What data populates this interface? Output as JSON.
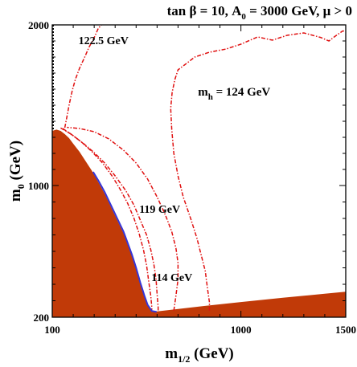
{
  "chart_data": {
    "type": "line",
    "title": "tan β = 10, A0 = 3000 GeV, μ > 0",
    "title_parts": {
      "a": "tan β = 10, A",
      "a_sub": "0",
      "b": " = 3000 GeV,  μ > 0"
    },
    "xlabel": "m1/2 (GeV)",
    "xlabel_parts": {
      "main": "m",
      "sub": "1/2",
      "rest": " (GeV)"
    },
    "ylabel": "m0 (GeV)",
    "ylabel_parts": {
      "main": "m",
      "sub": "0",
      "rest": " (GeV)"
    },
    "xlim": [
      100,
      1500
    ],
    "ylim": [
      200,
      2000
    ],
    "x_ticks": [
      {
        "value": 100,
        "label": "100"
      },
      {
        "value": 1000,
        "label": "1000"
      },
      {
        "value": 1500,
        "label": "1500"
      }
    ],
    "y_ticks": [
      {
        "value": 200,
        "label": "200"
      },
      {
        "value": 1000,
        "label": "1000"
      },
      {
        "value": 2000,
        "label": "2000"
      }
    ],
    "x_minor_ticks": [
      200,
      300,
      400,
      500,
      600,
      700,
      800,
      900,
      1100,
      1200,
      1300,
      1400
    ],
    "y_minor_ticks": [
      300,
      400,
      500,
      600,
      700,
      800,
      900,
      1100,
      1200,
      1300,
      1400,
      1500,
      1600,
      1700,
      1800,
      1900
    ],
    "colors": {
      "excluded_region": "#c13a08",
      "higgs_contours": "#e01010",
      "relic_density": "#3535d8",
      "chargino_limit": "#000000"
    },
    "excluded_region": {
      "name": "excluded region",
      "points": [
        [
          100,
          200
        ],
        [
          100,
          1340
        ],
        [
          120,
          1348
        ],
        [
          140,
          1340
        ],
        [
          160,
          1320
        ],
        [
          180,
          1295
        ],
        [
          200,
          1260
        ],
        [
          230,
          1210
        ],
        [
          260,
          1150
        ],
        [
          290,
          1090
        ],
        [
          320,
          1020
        ],
        [
          350,
          950
        ],
        [
          380,
          870
        ],
        [
          410,
          790
        ],
        [
          440,
          710
        ],
        [
          460,
          640
        ],
        [
          480,
          570
        ],
        [
          500,
          490
        ],
        [
          520,
          400
        ],
        [
          540,
          320
        ],
        [
          560,
          260
        ],
        [
          580,
          232
        ],
        [
          800,
          265
        ],
        [
          1000,
          292
        ],
        [
          1200,
          318
        ],
        [
          1400,
          343
        ],
        [
          1500,
          355
        ],
        [
          1500,
          200
        ]
      ]
    },
    "series": [
      {
        "name": "mh = 124 GeV",
        "label_parts": {
          "main": "m",
          "sub": "h",
          "rest": "  = 124 GeV"
        },
        "label_at": [
          795,
          1560
        ],
        "style": "dashdot",
        "points": [
          [
            850,
            240
          ],
          [
            850,
            290
          ],
          [
            840,
            380
          ],
          [
            830,
            480
          ],
          [
            810,
            580
          ],
          [
            790,
            680
          ],
          [
            760,
            800
          ],
          [
            725,
            930
          ],
          [
            700,
            1060
          ],
          [
            680,
            1200
          ],
          [
            670,
            1350
          ],
          [
            665,
            1480
          ],
          [
            672,
            1580
          ],
          [
            685,
            1660
          ],
          [
            700,
            1720
          ],
          [
            730,
            1750
          ],
          [
            780,
            1800
          ],
          [
            850,
            1830
          ],
          [
            930,
            1850
          ],
          [
            1000,
            1880
          ],
          [
            1080,
            1925
          ],
          [
            1150,
            1905
          ],
          [
            1220,
            1935
          ],
          [
            1300,
            1950
          ],
          [
            1380,
            1922
          ],
          [
            1420,
            1900
          ],
          [
            1450,
            1930
          ],
          [
            1485,
            1962
          ],
          [
            1500,
            1962
          ]
        ]
      },
      {
        "name": "122.5 GeV",
        "label_at": [
          225,
          1880
        ],
        "style": "dashdot",
        "points": [
          [
            160,
            1360
          ],
          [
            170,
            1430
          ],
          [
            180,
            1500
          ],
          [
            195,
            1590
          ],
          [
            210,
            1660
          ],
          [
            230,
            1730
          ],
          [
            255,
            1800
          ],
          [
            275,
            1860
          ],
          [
            300,
            1920
          ],
          [
            320,
            1980
          ],
          [
            335,
            2000
          ]
        ]
      },
      {
        "name": "119 GeV",
        "label_at": [
          515,
          835
        ],
        "style": "dashdot",
        "points": [
          [
            150,
            1355
          ],
          [
            200,
            1310
          ],
          [
            250,
            1260
          ],
          [
            300,
            1205
          ],
          [
            350,
            1140
          ],
          [
            400,
            1060
          ],
          [
            450,
            970
          ],
          [
            490,
            880
          ],
          [
            520,
            790
          ],
          [
            550,
            700
          ],
          [
            570,
            610
          ],
          [
            585,
            520
          ],
          [
            595,
            430
          ],
          [
            600,
            340
          ],
          [
            605,
            260
          ],
          [
            605,
            240
          ]
        ]
      },
      {
        "name": "114 GeV",
        "label_at": [
          573,
          420
        ],
        "style": "dashdot",
        "points": [
          [
            140,
            1358
          ],
          [
            190,
            1320
          ],
          [
            240,
            1270
          ],
          [
            290,
            1210
          ],
          [
            340,
            1140
          ],
          [
            385,
            1060
          ],
          [
            425,
            975
          ],
          [
            460,
            890
          ],
          [
            490,
            800
          ],
          [
            515,
            705
          ],
          [
            535,
            610
          ],
          [
            550,
            515
          ],
          [
            560,
            420
          ],
          [
            570,
            330
          ],
          [
            575,
            260
          ],
          [
            575,
            245
          ]
        ]
      },
      {
        "name": "",
        "style": "dashdot",
        "points": [
          [
            680,
            240
          ],
          [
            690,
            330
          ],
          [
            700,
            430
          ],
          [
            700,
            530
          ],
          [
            690,
            620
          ],
          [
            670,
            720
          ],
          [
            640,
            820
          ],
          [
            600,
            930
          ],
          [
            555,
            1040
          ],
          [
            500,
            1140
          ],
          [
            440,
            1220
          ],
          [
            370,
            1290
          ],
          [
            300,
            1335
          ],
          [
            230,
            1355
          ],
          [
            170,
            1362
          ]
        ]
      },
      {
        "name": "",
        "style": "solid",
        "points": [
          [
            295,
            1085
          ],
          [
            320,
            1030
          ],
          [
            350,
            960
          ],
          [
            380,
            880
          ],
          [
            410,
            800
          ],
          [
            440,
            720
          ],
          [
            460,
            650
          ],
          [
            480,
            580
          ],
          [
            500,
            500
          ],
          [
            520,
            410
          ],
          [
            540,
            330
          ],
          [
            555,
            275
          ],
          [
            575,
            238
          ],
          [
            598,
            232
          ]
        ]
      },
      {
        "name": "",
        "style": "dotted",
        "points": [
          [
            104,
            1350
          ],
          [
            104,
            2000
          ]
        ]
      }
    ]
  }
}
